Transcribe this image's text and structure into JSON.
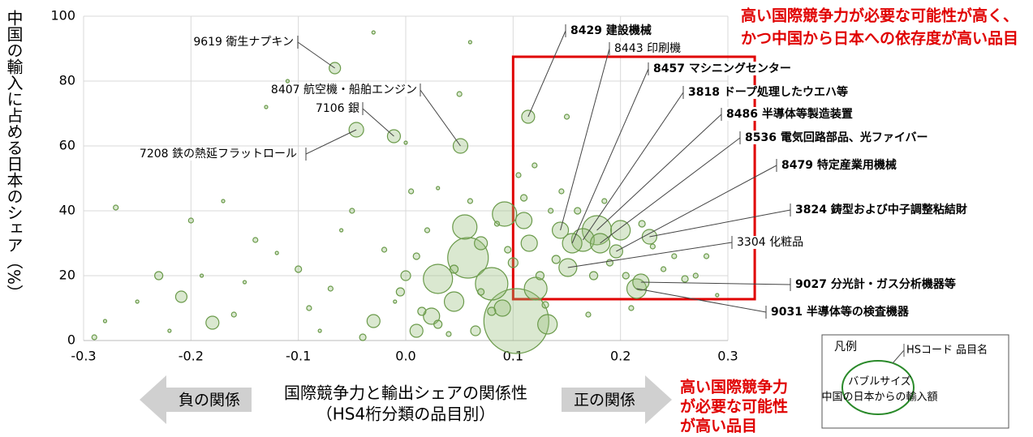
{
  "chart_data": {
    "type": "bubble",
    "ylabel": "中国の輸入に占める日本のシェア（%）",
    "xlabel": [
      "国際競争力と輸出シェアの関係性",
      "（HS4桁分類の品目別）"
    ],
    "xlim": [
      -0.3,
      0.3
    ],
    "xticks": [
      -0.3,
      -0.2,
      -0.1,
      {
        "value": 0,
        "label": "0.0"
      },
      0.1,
      0.2,
      0.3
    ],
    "ylim": [
      0,
      100
    ],
    "yticks": [
      0,
      20,
      40,
      60,
      80,
      100
    ],
    "grid": true,
    "color": "#6a9a4a",
    "series": [
      {
        "x": [
          -0.066,
          0.051,
          -0.011,
          -0.046,
          0.114,
          0.144,
          0.155,
          0.165,
          0.178,
          0.181,
          0.196,
          0.227,
          0.151,
          0.219,
          0.215,
          0.103,
          0.058,
          0.03,
          0.08,
          0.092,
          0.121,
          0.055,
          0.024,
          -0.03,
          -0.209,
          -0.18,
          0.132,
          0.11,
          0.115,
          0.2,
          0.09,
          0.045,
          0.01,
          0.07,
          0.0,
          -0.29,
          -0.27,
          -0.25,
          -0.23,
          -0.2,
          -0.19,
          -0.16,
          -0.15,
          -0.14,
          -0.12,
          -0.1,
          -0.09,
          -0.08,
          -0.07,
          -0.06,
          -0.05,
          -0.04,
          -0.02,
          -0.01,
          0.005,
          0.01,
          0.02,
          0.03,
          0.04,
          0.05,
          0.06,
          0.07,
          0.08,
          0.085,
          0.095,
          0.105,
          0.11,
          0.12,
          0.125,
          0.13,
          0.135,
          0.14,
          0.145,
          0.15,
          0.16,
          0.17,
          0.175,
          0.185,
          0.19,
          0.205,
          0.21,
          0.22,
          0.23,
          0.24,
          0.25,
          0.26,
          0.27,
          0.28,
          0.29,
          -0.28,
          -0.22,
          -0.17,
          -0.11,
          -0.13,
          0.0,
          -0.03,
          0.06,
          0.03,
          0.065,
          0.1,
          0.045,
          -0.005,
          0.015
        ],
        "values": [
          84,
          60,
          63,
          65,
          69,
          34,
          30,
          31,
          34,
          30,
          27.5,
          32,
          22.5,
          18,
          16,
          6,
          25.5,
          19,
          17.5,
          39,
          16,
          35,
          7.5,
          6,
          13.5,
          5.5,
          5,
          37,
          30,
          34,
          10,
          12,
          3,
          30,
          20,
          1,
          41,
          12,
          20,
          37,
          20,
          8,
          18,
          31,
          27,
          22,
          10,
          3,
          16,
          34,
          40,
          1,
          28,
          12,
          46,
          26,
          34,
          47,
          2,
          76,
          43,
          15,
          9,
          36,
          28,
          51,
          44,
          54,
          20,
          11,
          40,
          25,
          46,
          69,
          40,
          8,
          20,
          43,
          24,
          20,
          10,
          36,
          29,
          22,
          26,
          19,
          20,
          26,
          14,
          6,
          3,
          43,
          80,
          72,
          61,
          95,
          92,
          5,
          3,
          24,
          22,
          15,
          9
        ],
        "sizes": [
          49,
          81,
          64,
          81,
          64,
          100,
          144,
          196,
          324,
          144,
          64,
          81,
          121,
          100,
          144,
          1600,
          625,
          324,
          400,
          225,
          196,
          225,
          100,
          64,
          49,
          64,
          144,
          100,
          100,
          144,
          100,
          144,
          64,
          64,
          36,
          9,
          9,
          4,
          25,
          9,
          4,
          9,
          4,
          9,
          4,
          16,
          9,
          4,
          9,
          4,
          9,
          16,
          9,
          4,
          9,
          16,
          9,
          4,
          9,
          9,
          9,
          16,
          25,
          9,
          16,
          9,
          16,
          9,
          25,
          16,
          9,
          25,
          9,
          9,
          16,
          9,
          25,
          9,
          16,
          16,
          9,
          16,
          9,
          9,
          9,
          16,
          9,
          9,
          4,
          4,
          4,
          4,
          4,
          4,
          4,
          4,
          4,
          25,
          36,
          36,
          25,
          25,
          25
        ]
      }
    ],
    "annotations": [
      {
        "text": "9619 衛生ナプキン",
        "point": 0,
        "bold": false
      },
      {
        "text": "8407 航空機・船舶エンジン",
        "point": 1,
        "bold": false
      },
      {
        "text": "7106 銀",
        "point": 2,
        "bold": false
      },
      {
        "text": "7208 鉄の熱延フラットロール",
        "point": 3,
        "bold": false
      },
      {
        "text": "8429 建設機械",
        "point": 4,
        "bold": true
      },
      {
        "text": "8443 印刷機",
        "point": 5,
        "bold": false
      },
      {
        "text": "8457 マシニングセンター",
        "point": 6,
        "bold": true
      },
      {
        "text": "3818 ドープ処理したウエハ等",
        "point": 7,
        "bold": true
      },
      {
        "text": "8486 半導体等製造装置",
        "point": 8,
        "bold": true
      },
      {
        "text": "8536 電気回路部品、光ファイバー",
        "point": 9,
        "bold": true
      },
      {
        "text": "8479 特定産業用機械",
        "point": 10,
        "bold": true
      },
      {
        "text": "3824 鋳型および中子調整粘結財",
        "point": 11,
        "bold": true
      },
      {
        "text": "3304 化粧品",
        "point": 12,
        "bold": false
      },
      {
        "text": "9027 分光計・ガス分析機器等",
        "point": 13,
        "bold": true
      },
      {
        "text": "9031 半導体等の検査機器",
        "point": 14,
        "bold": true
      }
    ],
    "highlight_box": {
      "xlim": [
        0.1,
        0.325
      ],
      "ylim": [
        12.75,
        87.5
      ],
      "color": "#e00000"
    },
    "highlight_text": [
      "高い国際競争力が必要な可能性が高く、",
      "かつ中国から日本への依存度が高い品目"
    ],
    "direction_note": [
      "高い国際競争力",
      "が必要な可能性",
      "が高い品目"
    ],
    "negative_label": "負の関係",
    "positive_label": "正の関係",
    "legend": {
      "title": "凡例",
      "label": "HSコード 品目名",
      "size_title": "バブルサイズ",
      "size_desc": "中国の日本からの輸入額"
    }
  }
}
